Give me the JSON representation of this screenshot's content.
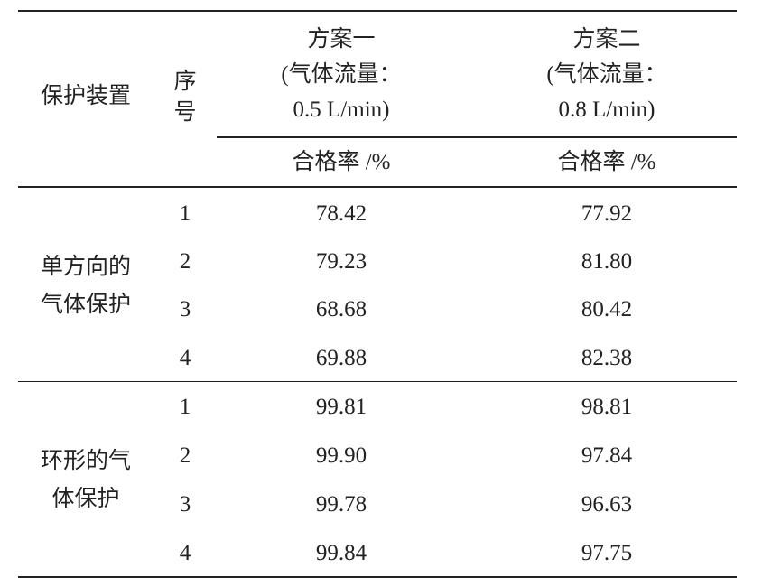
{
  "table": {
    "header": {
      "device": "保护装置",
      "seq": [
        "序",
        "号"
      ],
      "schemes": [
        {
          "lines": [
            "方案一",
            "(气体流量：",
            "0.5 L/min)"
          ],
          "unit": "合格率 /%"
        },
        {
          "lines": [
            "方案二",
            "(气体流量：",
            "0.8 L/min)"
          ],
          "unit": "合格率 /%"
        }
      ]
    },
    "groups": [
      {
        "label": [
          "单方向的",
          "气体保护"
        ],
        "rows": [
          [
            "1",
            "78.42",
            "77.92"
          ],
          [
            "2",
            "79.23",
            "81.80"
          ],
          [
            "3",
            "68.68",
            "80.42"
          ],
          [
            "4",
            "69.88",
            "82.38"
          ]
        ]
      },
      {
        "label": [
          "环形的气",
          "体保护"
        ],
        "rows": [
          [
            "1",
            "99.81",
            "98.81"
          ],
          [
            "2",
            "99.90",
            "97.84"
          ],
          [
            "3",
            "99.78",
            "96.63"
          ],
          [
            "4",
            "99.84",
            "97.75"
          ]
        ]
      }
    ]
  }
}
